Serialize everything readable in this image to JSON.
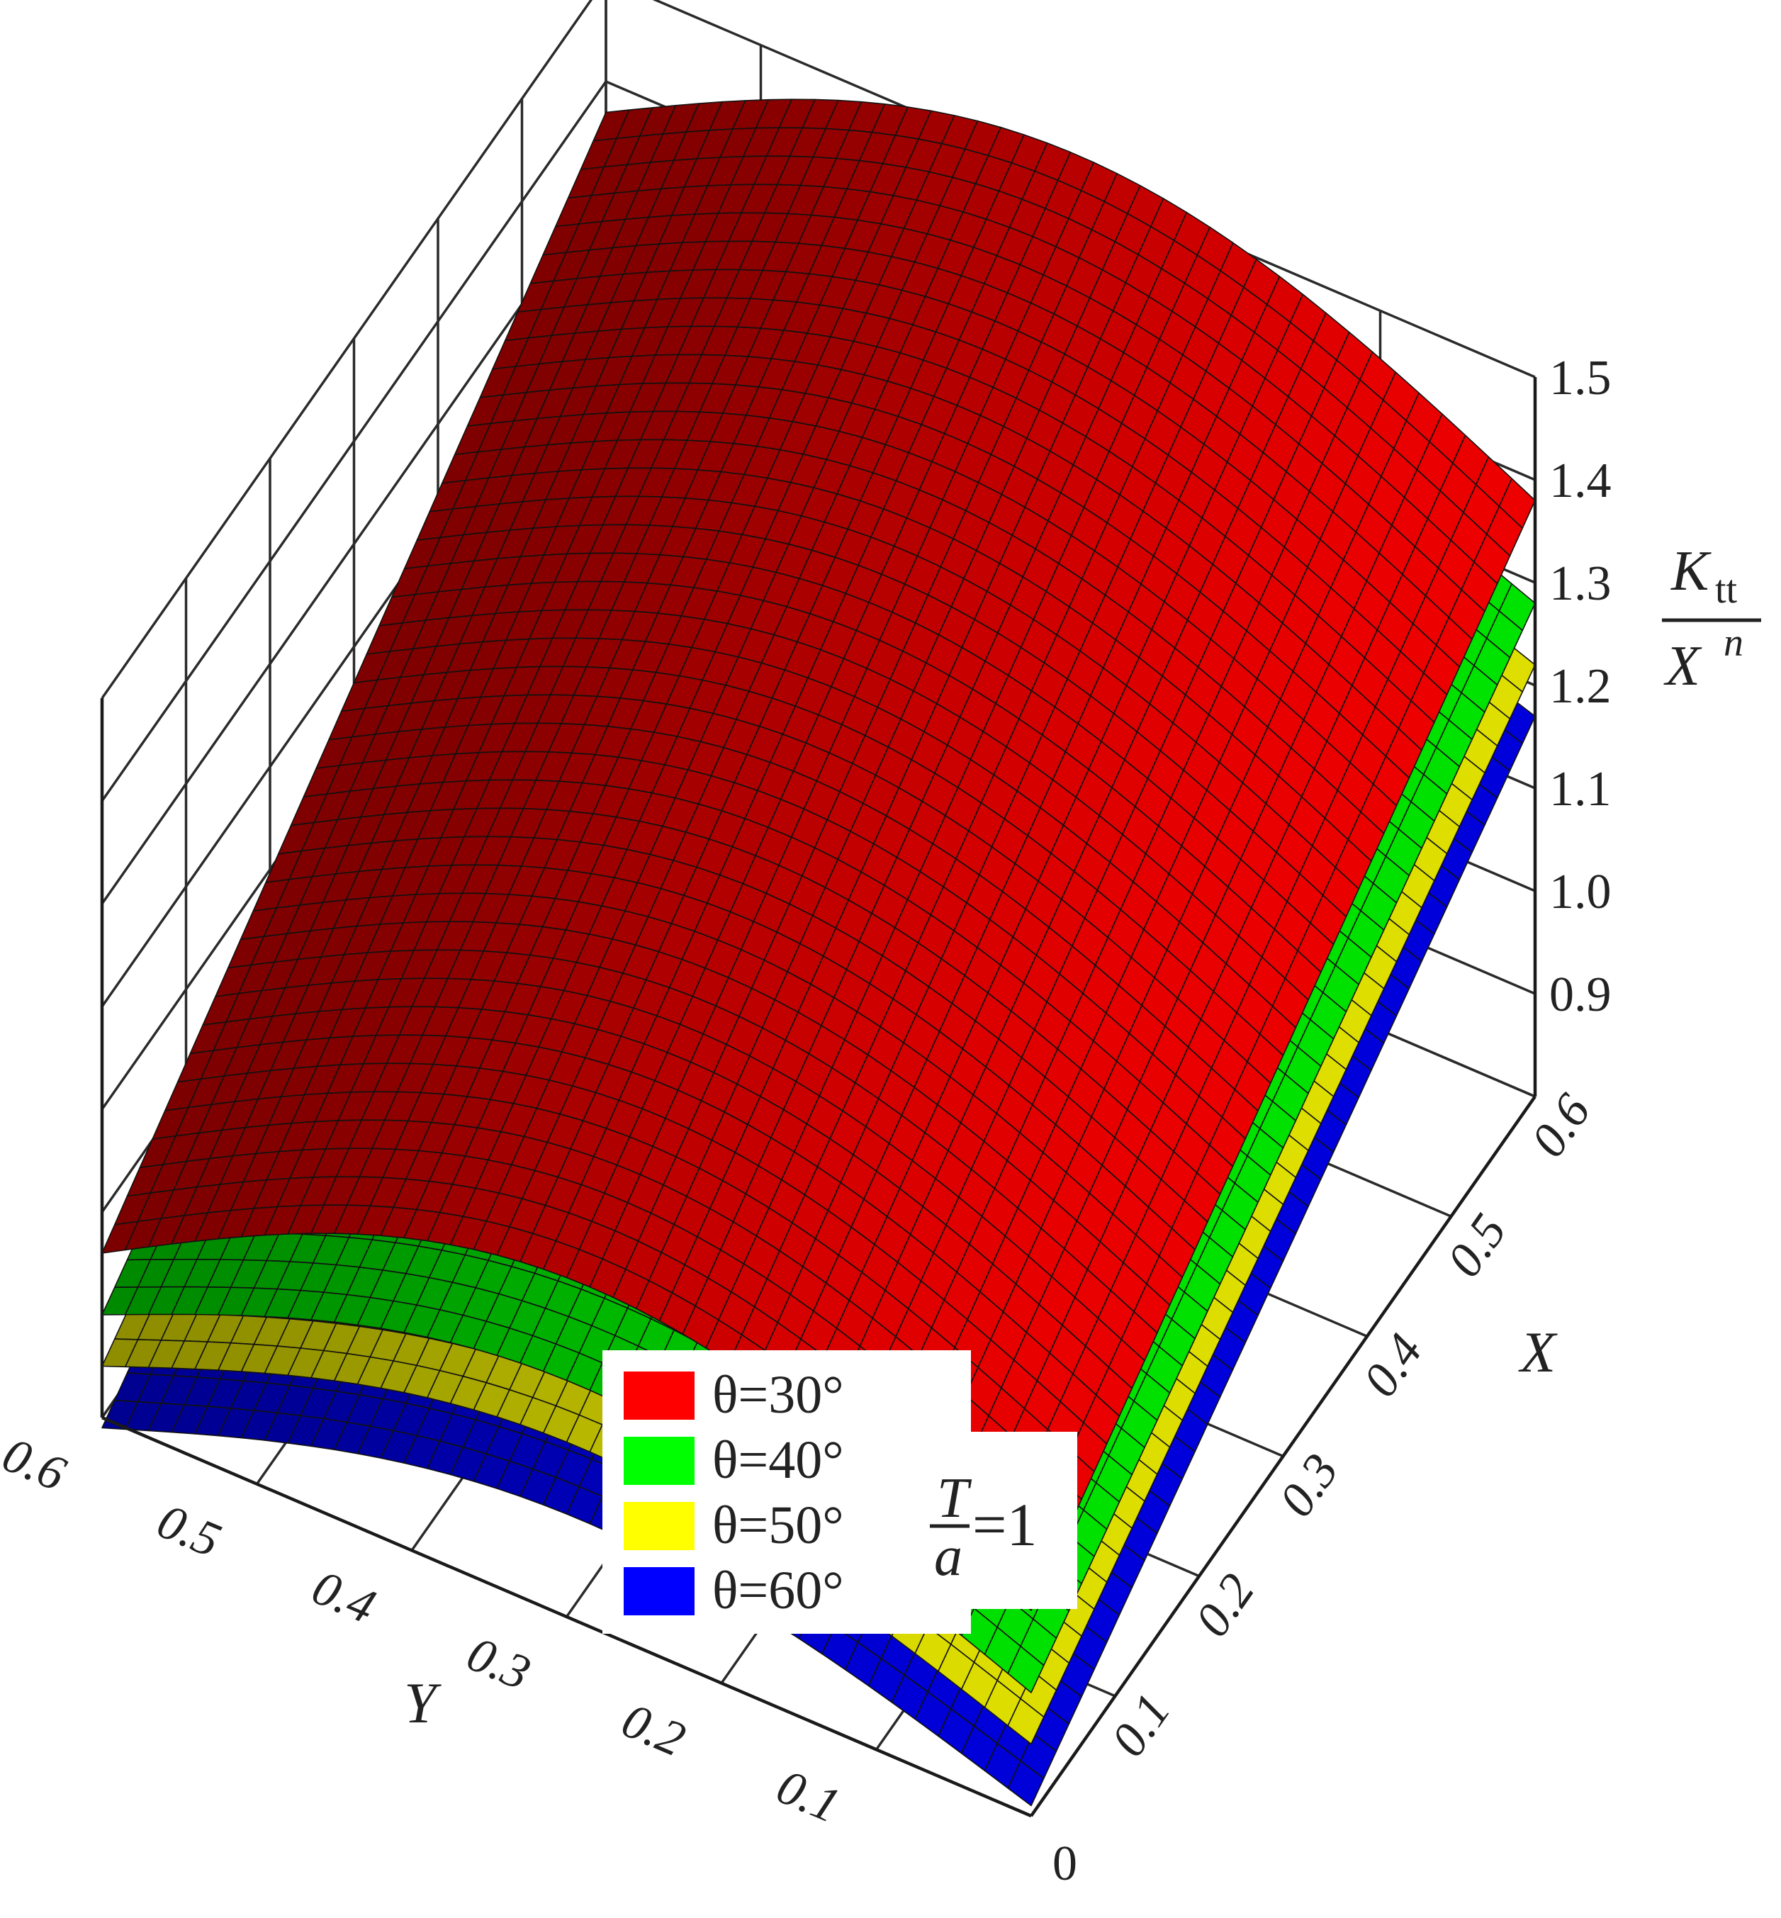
{
  "chart_data": {
    "type": "surface",
    "title": "",
    "axes": {
      "x": {
        "label": "X",
        "range": [
          0,
          0.6
        ],
        "ticks": [
          "0",
          "0.1",
          "0.2",
          "0.3",
          "0.4",
          "0.5",
          "0.6"
        ]
      },
      "y": {
        "label": "Y",
        "range": [
          0,
          0.6
        ],
        "ticks": [
          "0.1",
          "0.2",
          "0.3",
          "0.4",
          "0.5",
          "0.6"
        ]
      },
      "z": {
        "label_top": "K",
        "label_top_sub": "tt",
        "label_bottom": "X",
        "label_bottom_sup": "n",
        "range": [
          0.8,
          1.5
        ],
        "ticks": [
          "0.9",
          "1.0",
          "1.1",
          "1.2",
          "1.3",
          "1.4",
          "1.5"
        ]
      }
    },
    "grid": true,
    "legend": {
      "placement": "bottom-center"
    },
    "annotation": {
      "numerator": "T",
      "denominator": "a",
      "value": "=1"
    },
    "series": [
      {
        "name": "θ=30°",
        "color": "#ff0000",
        "corners": {
          "x0_y0": 1.0,
          "x06_y0": 1.38,
          "x0_y06": 0.96,
          "x06_y06": 1.37
        },
        "hump": 0.15
      },
      {
        "name": "θ=40°",
        "color": "#00ff00",
        "corners": {
          "x0_y0": 0.92,
          "x06_y0": 1.28,
          "x0_y06": 0.9,
          "x06_y06": 1.27
        },
        "hump": 0.12
      },
      {
        "name": "θ=50°",
        "color": "#ffff00",
        "corners": {
          "x0_y0": 0.87,
          "x06_y0": 1.22,
          "x0_y06": 0.85,
          "x06_y06": 1.21
        },
        "hump": 0.11
      },
      {
        "name": "θ=60°",
        "color": "#0000ff",
        "corners": {
          "x0_y0": 0.81,
          "x06_y0": 1.17,
          "x0_y06": 0.79,
          "x06_y06": 1.16
        },
        "hump": 0.1
      }
    ]
  }
}
